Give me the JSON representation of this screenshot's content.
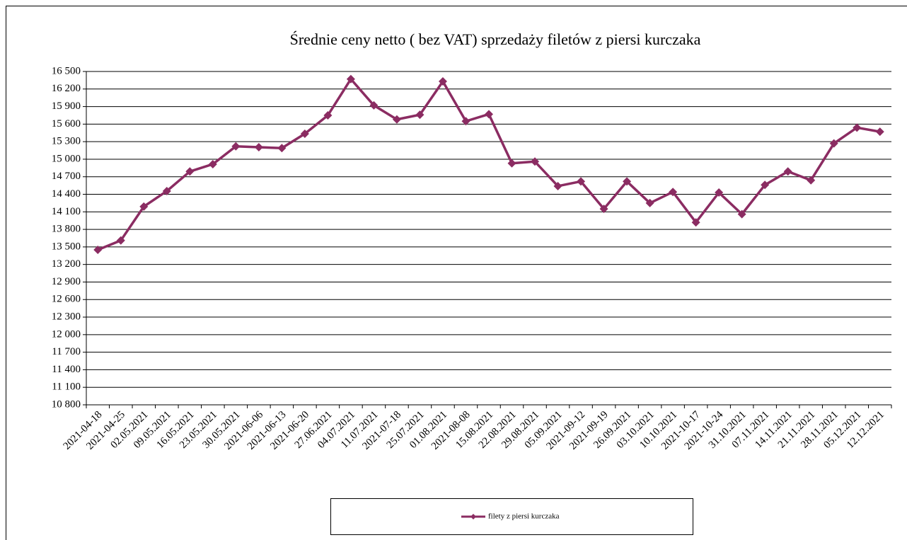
{
  "chart_data": {
    "type": "line",
    "title": "Średnie ceny netto ( bez VAT) sprzedaży filetów z piersi kurczaka",
    "categories": [
      "2021-04-18",
      "2021-04-25",
      "02.05.2021",
      "09.05.2021",
      "16.05.2021",
      "23.05.2021",
      "30.05.2021",
      "2021-06-06",
      "2021-06-13",
      "2021-06-20",
      "27.06.2021",
      "04.07.2021",
      "11.07.2021",
      "2021-07-18",
      "25.07.2021",
      "01.08.2021",
      "2021-08-08",
      "15.08.2021",
      "22.08.2021",
      "29.08.2021",
      "05.09.2021",
      "2021-09-12",
      "2021-09-19",
      "26.09.2021",
      "03.10.2021",
      "10.10.2021",
      "2021-10-17",
      "2021-10-24",
      "31.10.2021",
      "07.11.2021",
      "14.11.2021",
      "21.11.2021",
      "28.11.2021",
      "05.12.2021",
      "12.12.2021"
    ],
    "series": [
      {
        "name": "filety z piersi kurczaka",
        "color": "#8b2c62",
        "values": [
          13450,
          13610,
          14190,
          14455,
          14790,
          14915,
          15220,
          15205,
          15190,
          15435,
          15750,
          16370,
          15920,
          15680,
          15760,
          16330,
          15650,
          15770,
          14930,
          14960,
          14540,
          14620,
          14150,
          14620,
          14250,
          14440,
          13920,
          14430,
          14060,
          14560,
          14790,
          14640,
          15270,
          15540,
          15470
        ]
      }
    ],
    "ylim": [
      10800,
      16500
    ],
    "yticks": [
      {
        "value": 10800,
        "label": "10 800"
      },
      {
        "value": 11100,
        "label": "11 100"
      },
      {
        "value": 11400,
        "label": "11 400"
      },
      {
        "value": 11700,
        "label": "11 700"
      },
      {
        "value": 12000,
        "label": "12 000"
      },
      {
        "value": 12300,
        "label": "12 300"
      },
      {
        "value": 12600,
        "label": "12 600"
      },
      {
        "value": 12900,
        "label": "12 900"
      },
      {
        "value": 13200,
        "label": "13 200"
      },
      {
        "value": 13500,
        "label": "13 500"
      },
      {
        "value": 13800,
        "label": "13 800"
      },
      {
        "value": 14100,
        "label": "14 100"
      },
      {
        "value": 14400,
        "label": "14 400"
      },
      {
        "value": 14700,
        "label": "14 700"
      },
      {
        "value": 15000,
        "label": "15 000"
      },
      {
        "value": 15300,
        "label": "15 300"
      },
      {
        "value": 15600,
        "label": "15 600"
      },
      {
        "value": 15900,
        "label": "15 900"
      },
      {
        "value": 16200,
        "label": "16 200"
      },
      {
        "value": 16500,
        "label": "16 500"
      }
    ],
    "grid": true,
    "legend": "bottom"
  }
}
